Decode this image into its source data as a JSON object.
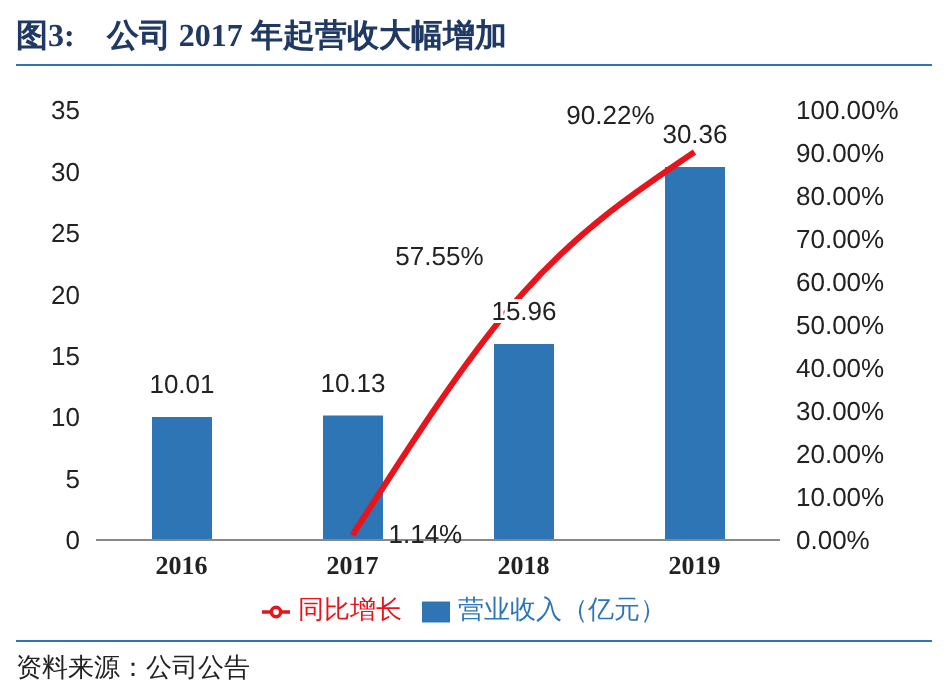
{
  "chart_data": {
    "type": "bar",
    "title": "图3:    公司 2017 年起营收大幅增加",
    "categories": [
      "2016",
      "2017",
      "2018",
      "2019"
    ],
    "series": [
      {
        "name": "营业收入（亿元）",
        "color": "#2e75b6",
        "values": [
          10.01,
          10.13,
          15.96,
          30.36
        ],
        "value_labels": [
          "10.01",
          "10.13",
          "15.96",
          "30.36"
        ]
      },
      {
        "name": "同比增长",
        "type": "line",
        "axis": "y2",
        "color": "#e8141c",
        "values": [
          null,
          1.14,
          57.55,
          90.22
        ],
        "value_labels": [
          null,
          "1.14%",
          "57.55%",
          "90.22%"
        ]
      }
    ],
    "ylim": [
      0,
      35
    ],
    "yticks": [
      0,
      5,
      10,
      15,
      20,
      25,
      30,
      35
    ],
    "y2lim": [
      0,
      100
    ],
    "y2ticks": [
      {
        "value": 0,
        "label": "0.00%"
      },
      {
        "value": 10,
        "label": "10.00%"
      },
      {
        "value": 20,
        "label": "20.00%"
      },
      {
        "value": 30,
        "label": "30.00%"
      },
      {
        "value": 40,
        "label": "40.00%"
      },
      {
        "value": 50,
        "label": "50.00%"
      },
      {
        "value": 60,
        "label": "60.00%"
      },
      {
        "value": 70,
        "label": "70.00%"
      },
      {
        "value": 80,
        "label": "80.00%"
      },
      {
        "value": 90,
        "label": "90.00%"
      },
      {
        "value": 100,
        "label": "100.00%"
      }
    ],
    "grid": false,
    "legend": "bottom",
    "marker": "none",
    "line_style": "solid",
    "annotations": [
      "资料来源：公司公告"
    ]
  }
}
